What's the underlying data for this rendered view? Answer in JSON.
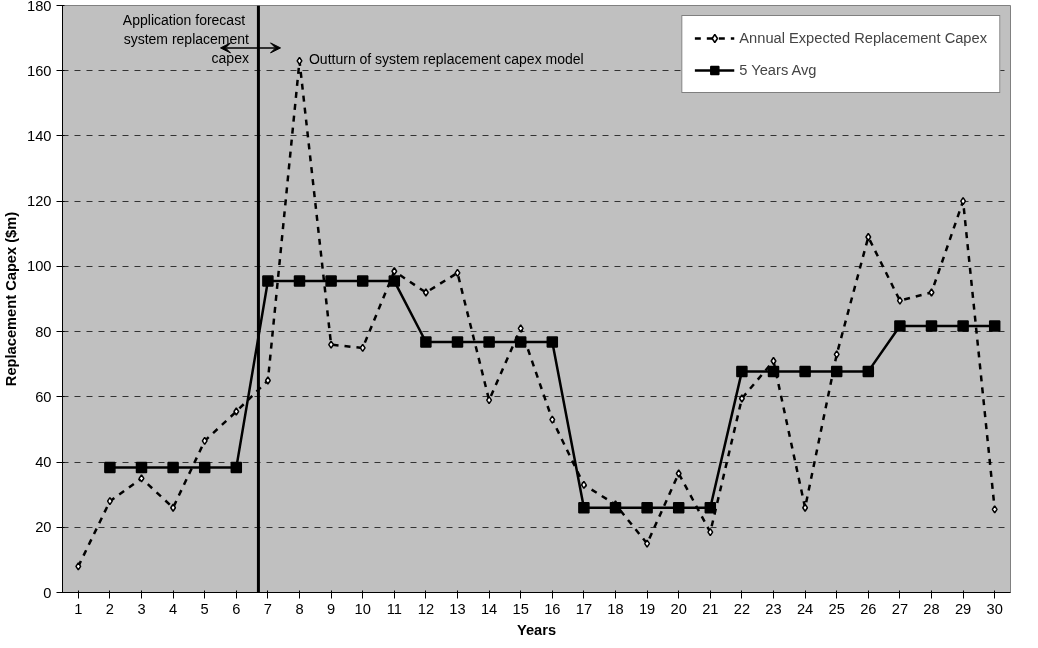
{
  "chart_data": {
    "type": "line",
    "xlabel": "Years",
    "ylabel": "Replacement Capex ($m)",
    "x": [
      1,
      2,
      3,
      4,
      5,
      6,
      7,
      8,
      9,
      10,
      11,
      12,
      13,
      14,
      15,
      16,
      17,
      18,
      19,
      20,
      21,
      22,
      23,
      24,
      25,
      26,
      27,
      28,
      29,
      30
    ],
    "xlim": [
      0.5,
      30.5
    ],
    "xticks": [
      1,
      2,
      3,
      4,
      5,
      6,
      7,
      8,
      9,
      10,
      11,
      12,
      13,
      14,
      15,
      16,
      17,
      18,
      19,
      20,
      21,
      22,
      23,
      24,
      25,
      26,
      27,
      28,
      29,
      30
    ],
    "ylim": [
      0,
      180
    ],
    "yticks": [
      0,
      20,
      40,
      60,
      80,
      100,
      120,
      140,
      160,
      180
    ],
    "grid": "y",
    "legend": "top right",
    "series": [
      {
        "name": "Annual Expected Replacement Capex",
        "color": "#000000",
        "marker": "diamond",
        "line_style": "dashed",
        "values": [
          8,
          28,
          35,
          26,
          46.5,
          55.5,
          65,
          163,
          76,
          75,
          98.5,
          92,
          98,
          59,
          81,
          53,
          33,
          27,
          15,
          36.5,
          18.5,
          59.5,
          71,
          26,
          73,
          109,
          89.5,
          92,
          120,
          25.5
        ]
      },
      {
        "name": "5 Years Avg",
        "color": "#000000",
        "marker": "square",
        "line_style": "solid",
        "values": [
          null,
          38.3,
          38.3,
          38.3,
          38.3,
          38.3,
          95.5,
          95.5,
          95.5,
          95.5,
          95.5,
          76.8,
          76.8,
          76.8,
          76.8,
          76.8,
          26,
          26,
          26,
          26,
          26,
          67.8,
          67.8,
          67.8,
          67.8,
          67.8,
          81.7,
          81.7,
          81.7,
          81.7
        ]
      }
    ],
    "ref_lines": [
      {
        "axis": "x",
        "value": 6.7,
        "color": "#000000",
        "line_style": "solid"
      }
    ],
    "annotations": [
      "Application  forecast\nsystem replacement\ncapex",
      "Outturn of system replacement capex model"
    ]
  }
}
